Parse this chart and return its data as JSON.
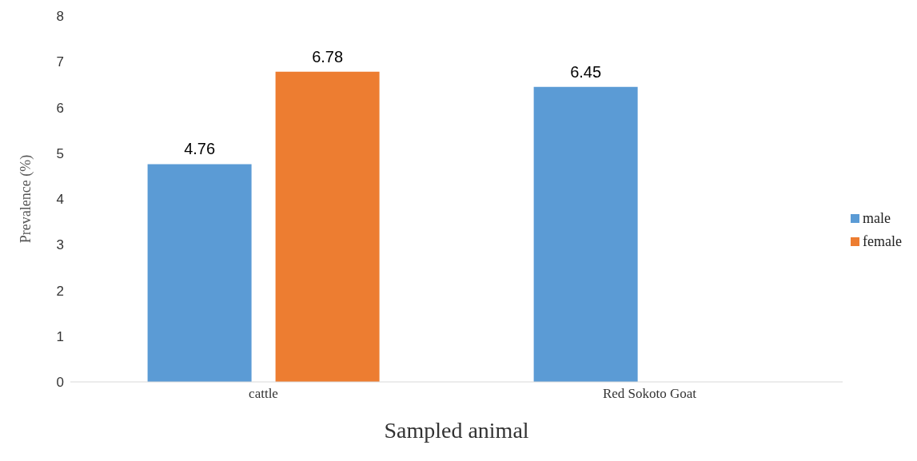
{
  "chart_data": {
    "type": "bar",
    "xlabel": "Sampled animal",
    "ylabel": "Prevalence (%)",
    "categories": [
      "cattle",
      "Red Sokoto Goat"
    ],
    "series": [
      {
        "name": "male",
        "color": "#5b9bd5",
        "values": [
          4.76,
          6.45
        ]
      },
      {
        "name": "female",
        "color": "#ed7d31",
        "values": [
          6.78,
          null
        ]
      }
    ],
    "ylim": [
      0,
      8
    ],
    "yticks": [
      0,
      1,
      2,
      3,
      4,
      5,
      6,
      7,
      8
    ],
    "grid": false,
    "legend": "right",
    "data_labels": true
  }
}
